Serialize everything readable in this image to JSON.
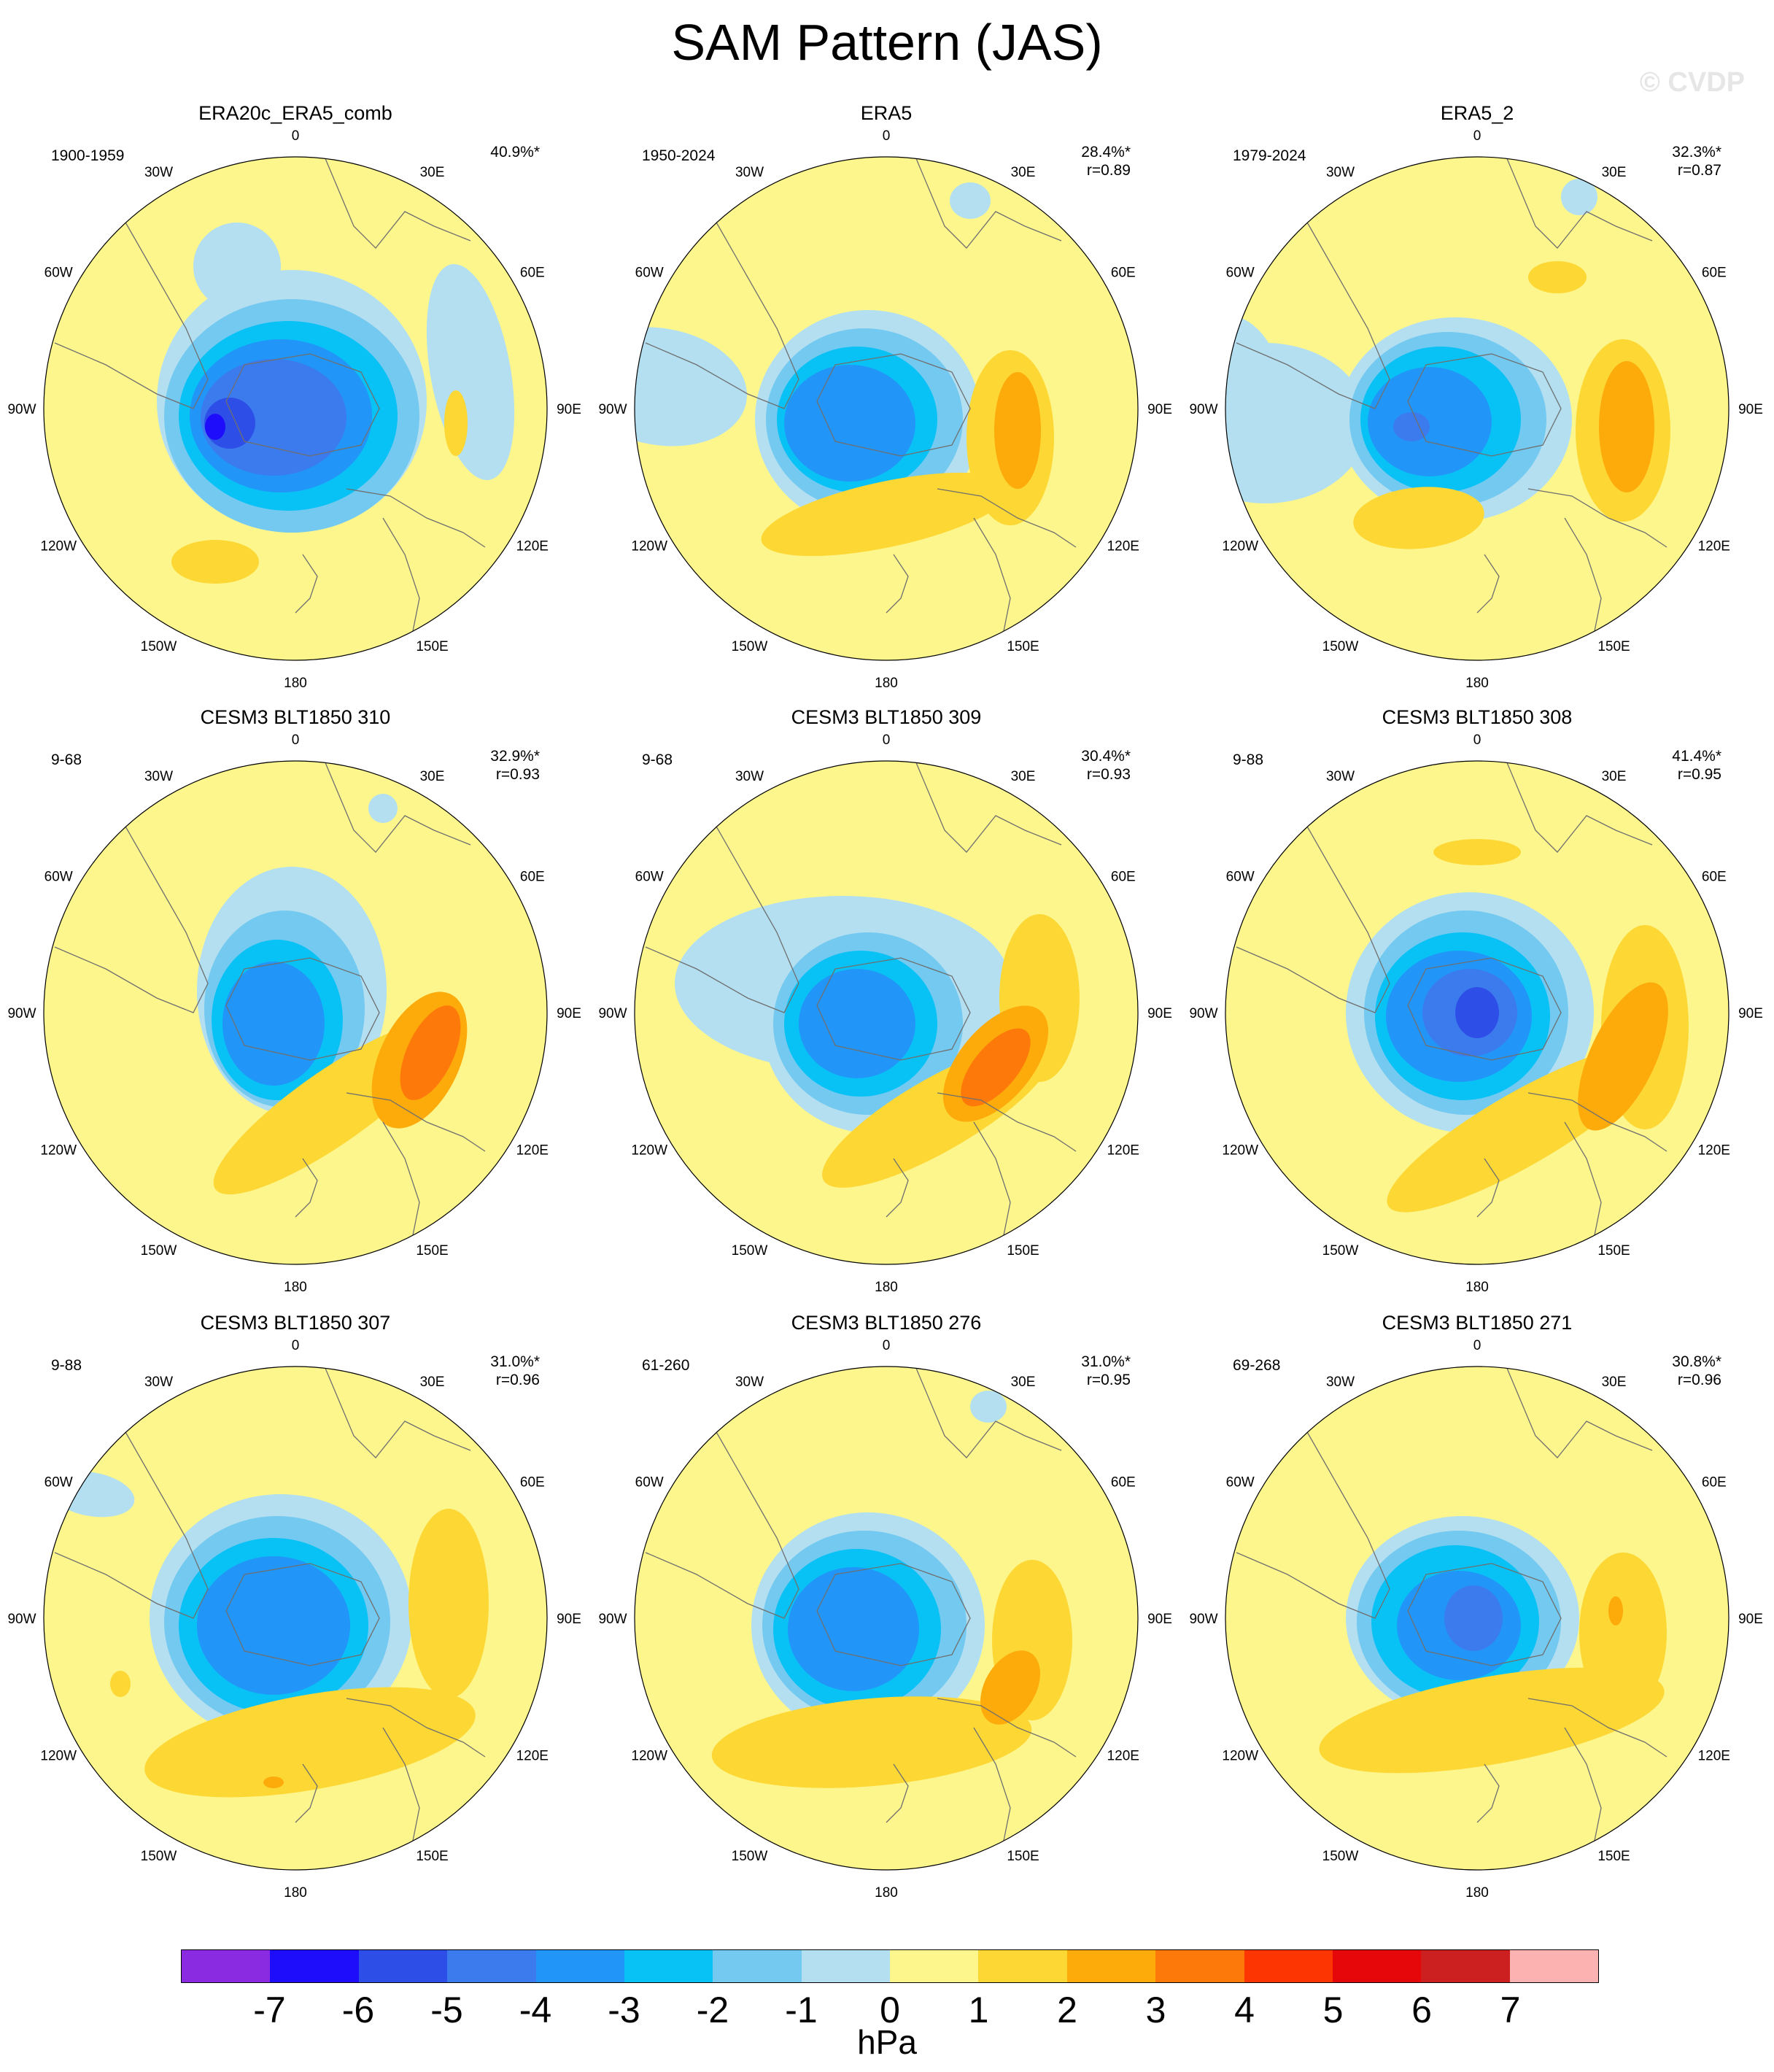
{
  "title": "SAM Pattern (JAS)",
  "watermark": "© CVDP",
  "colors": {
    "n7": "#8a2be2",
    "n6": "#1e0dfb",
    "n5": "#2e4ee8",
    "n4": "#3c7bed",
    "n3": "#2196f8",
    "n2": "#09c2f5",
    "n1": "#74c9f0",
    "n0": "#b3dff1",
    "p0": "#fdf68d",
    "p1": "#fdd734",
    "p2": "#fdaa0b",
    "p3": "#fd7a0a",
    "p4": "#fd3503",
    "p5": "#e6070b",
    "p6": "#cc1f1f",
    "p7": "#fdb2b2"
  },
  "longitude_labels": [
    "0",
    "30E",
    "60E",
    "90E",
    "120E",
    "150E",
    "180",
    "150W",
    "120W",
    "90W",
    "60W",
    "30W"
  ],
  "panels": [
    {
      "title": "ERA20c_ERA5_comb",
      "period": "1900-1959",
      "pct": "40.9%*",
      "r": ""
    },
    {
      "title": "ERA5",
      "period": "1950-2024",
      "pct": "28.4%*",
      "r": "r=0.89"
    },
    {
      "title": "ERA5_2",
      "period": "1979-2024",
      "pct": "32.3%*",
      "r": "r=0.87"
    },
    {
      "title": "CESM3 BLT1850 310",
      "period": "9-68",
      "pct": "32.9%*",
      "r": "r=0.93"
    },
    {
      "title": "CESM3 BLT1850 309",
      "period": "9-68",
      "pct": "30.4%*",
      "r": "r=0.93"
    },
    {
      "title": "CESM3 BLT1850 308",
      "period": "9-88",
      "pct": "41.4%*",
      "r": "r=0.95"
    },
    {
      "title": "CESM3 BLT1850 307",
      "period": "9-88",
      "pct": "31.0%*",
      "r": "r=0.96"
    },
    {
      "title": "CESM3 BLT1850 276",
      "period": "61-260",
      "pct": "31.0%*",
      "r": "r=0.95"
    },
    {
      "title": "CESM3 BLT1850 271",
      "period": "69-268",
      "pct": "30.8%*",
      "r": "r=0.96"
    }
  ],
  "colorbar": {
    "labels": [
      "-7",
      "-6",
      "-5",
      "-4",
      "-3",
      "-2",
      "-1",
      "0",
      "1",
      "2",
      "3",
      "4",
      "5",
      "6",
      "7"
    ],
    "units": "hPa",
    "colors": [
      "#8a2be2",
      "#1e0dfb",
      "#2e4ee8",
      "#3c7bed",
      "#2196f8",
      "#09c2f5",
      "#74c9f0",
      "#b3dff1",
      "#fdf68d",
      "#fdd734",
      "#fdaa0b",
      "#fd7a0a",
      "#fd3503",
      "#e6070b",
      "#cc1f1f",
      "#fdb2b2"
    ]
  }
}
